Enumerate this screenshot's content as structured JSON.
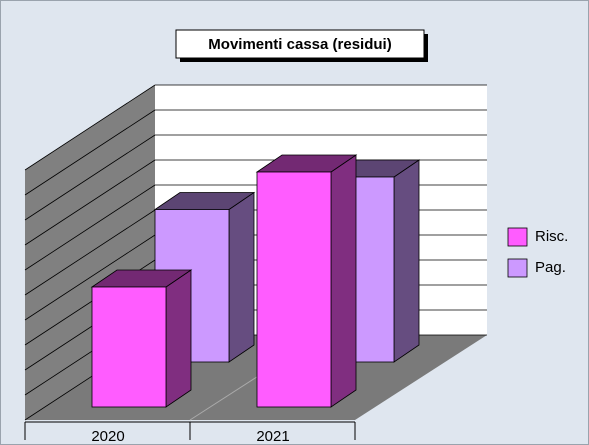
{
  "chart_data": {
    "type": "bar3d",
    "title": "Movimenti cassa (residui)",
    "categories": [
      "2020",
      "2021"
    ],
    "series": [
      {
        "name": "Risc.",
        "color": "#ff5cff",
        "values": [
          4.8,
          9.4
        ]
      },
      {
        "name": "Pag.",
        "color": "#cc99ff",
        "values": [
          6.1,
          7.4
        ]
      }
    ],
    "ylim": [
      0,
      10
    ],
    "yticks": [
      0,
      1,
      2,
      3,
      4,
      5,
      6,
      7,
      8,
      9,
      10
    ],
    "grid": true,
    "legend": "right"
  }
}
